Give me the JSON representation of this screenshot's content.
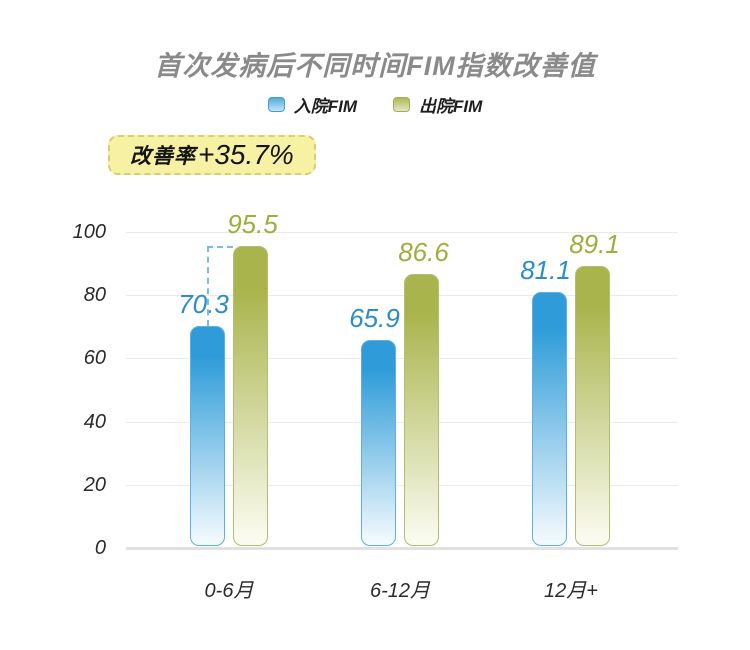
{
  "title": "首次发病后不同时间FIM指数改善值",
  "legend": {
    "items": [
      {
        "label": "入院FIM",
        "swatch_top": "#54abde",
        "swatch_bottom": "#c3e4f6",
        "swatch_border": "#3e9ed5"
      },
      {
        "label": "出院FIM",
        "swatch_top": "#adb85a",
        "swatch_bottom": "#e4e8c2",
        "swatch_border": "#a3af4b"
      }
    ]
  },
  "badge": {
    "prefix": "改善率",
    "value": "+35.7%",
    "bg": "#f7f1a3",
    "border_color": "#d9cf72"
  },
  "chart_data": {
    "type": "bar",
    "title": "首次发病后不同时间FIM指数改善值",
    "categories": [
      "0-6月",
      "6-12月",
      "12月+"
    ],
    "series": [
      {
        "name": "入院FIM",
        "values": [
          70.3,
          65.9,
          81.1
        ],
        "bar_color": "#2f9cd9",
        "bar_border": "#60b1e0",
        "bar_fade": "#f2f9fd",
        "label_color": "#2b8ccb"
      },
      {
        "name": "出院FIM",
        "values": [
          95.5,
          86.6,
          89.1
        ],
        "bar_color": "#a9b44c",
        "bar_border": "#b4bd70",
        "bar_fade": "#fafbef",
        "label_color": "#9ead3c"
      }
    ],
    "yticks": [
      0,
      20,
      40,
      60,
      80,
      100
    ],
    "ylim": [
      0,
      100
    ],
    "grid": true,
    "legend_position": "top",
    "value_labels": true,
    "annotation": {
      "text": "改善率+35.7%",
      "category": "0-6月",
      "from_value": 70.3,
      "to_value": 95.5
    }
  }
}
